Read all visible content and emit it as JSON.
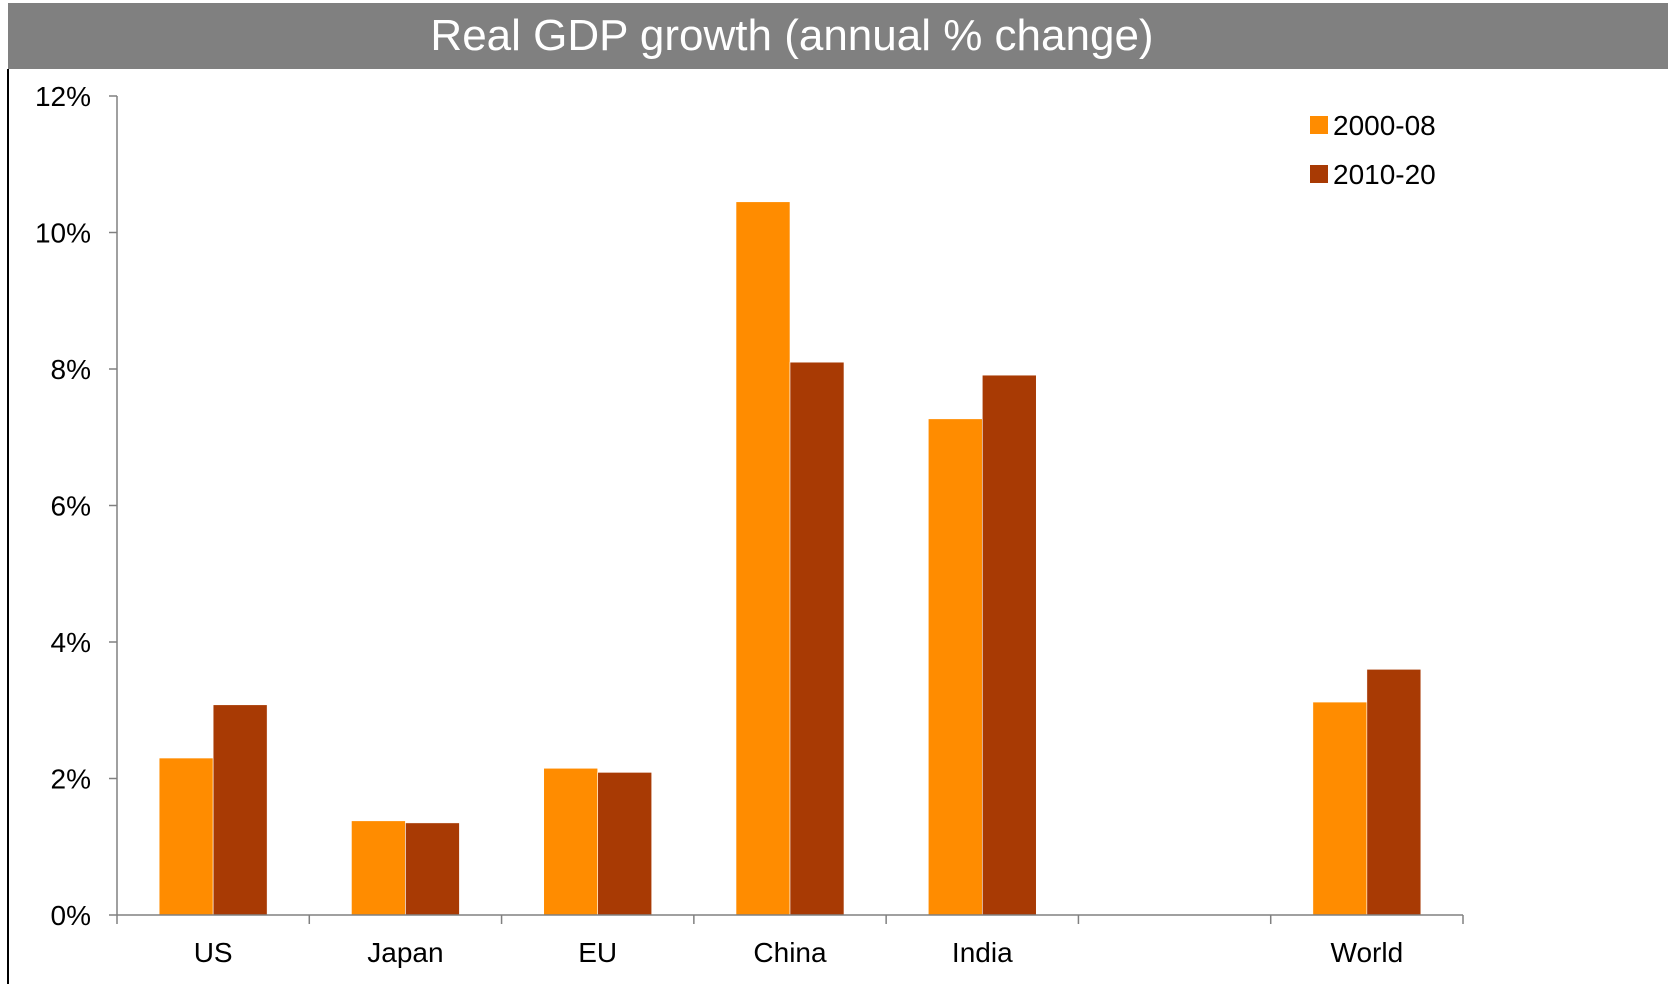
{
  "chart_data": {
    "type": "bar",
    "title": "Real GDP growth (annual % change)",
    "xlabel": "",
    "ylabel": "",
    "categories": [
      "US",
      "Japan",
      "EU",
      "China",
      "India",
      "",
      "World"
    ],
    "series": [
      {
        "name": "2000-08",
        "color": "#FF8C00",
        "values": [
          2.3,
          1.38,
          2.15,
          10.45,
          7.27,
          null,
          3.12
        ]
      },
      {
        "name": "2010-20",
        "color": "#A83A04",
        "values": [
          3.08,
          1.35,
          2.09,
          8.1,
          7.91,
          null,
          3.6
        ]
      }
    ],
    "ylim": [
      0,
      12
    ],
    "yticks": [
      0,
      2,
      4,
      6,
      8,
      10,
      12
    ],
    "ytick_labels": [
      "0%",
      "2%",
      "4%",
      "6%",
      "8%",
      "10%",
      "12%"
    ],
    "grid": false,
    "legend_position": "top-right"
  }
}
